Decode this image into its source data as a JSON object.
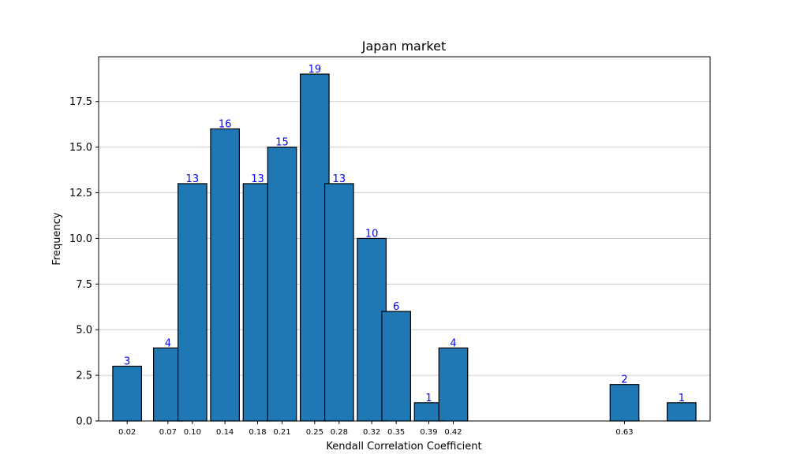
{
  "chart_data": {
    "type": "bar",
    "title": "Japan market",
    "xlabel": "Kendall Correlation Coefficient",
    "ylabel": "Frequency",
    "bin_width": 0.0353,
    "bins": [
      {
        "center": 0.02,
        "value": 3
      },
      {
        "center": 0.07,
        "value": 4
      },
      {
        "center": 0.1,
        "value": 13
      },
      {
        "center": 0.14,
        "value": 16
      },
      {
        "center": 0.18,
        "value": 13
      },
      {
        "center": 0.21,
        "value": 15
      },
      {
        "center": 0.25,
        "value": 19
      },
      {
        "center": 0.28,
        "value": 13
      },
      {
        "center": 0.32,
        "value": 10
      },
      {
        "center": 0.35,
        "value": 6
      },
      {
        "center": 0.39,
        "value": 1
      },
      {
        "center": 0.42,
        "value": 4
      },
      {
        "center": 0.63,
        "value": 2
      },
      {
        "center": 0.7,
        "value": 1
      }
    ],
    "xticks": [
      {
        "value": 0.02,
        "label": "0.02"
      },
      {
        "value": 0.07,
        "label": "0.07"
      },
      {
        "value": 0.1,
        "label": "0.10"
      },
      {
        "value": 0.14,
        "label": "0.14"
      },
      {
        "value": 0.18,
        "label": "0.18"
      },
      {
        "value": 0.21,
        "label": "0.21"
      },
      {
        "value": 0.25,
        "label": "0.25"
      },
      {
        "value": 0.28,
        "label": "0.28"
      },
      {
        "value": 0.32,
        "label": "0.32"
      },
      {
        "value": 0.35,
        "label": "0.35"
      },
      {
        "value": 0.39,
        "label": "0.39"
      },
      {
        "value": 0.42,
        "label": "0.42"
      },
      {
        "value": 0.63,
        "label": "0.63"
      }
    ],
    "yticks": [
      0.0,
      2.5,
      5.0,
      7.5,
      10.0,
      12.5,
      15.0,
      17.5
    ],
    "ytick_labels": [
      "0.0",
      "2.5",
      "5.0",
      "7.5",
      "10.0",
      "12.5",
      "15.0",
      "17.5"
    ],
    "xlim": [
      -0.015,
      0.735
    ],
    "ylim": [
      0,
      19.95
    ],
    "grid": {
      "y": true,
      "x": false
    },
    "colors": {
      "bar": "#1f77b4",
      "edge": "#000000",
      "value_label": "#0000ff",
      "grid": "#c0c0c0"
    }
  }
}
